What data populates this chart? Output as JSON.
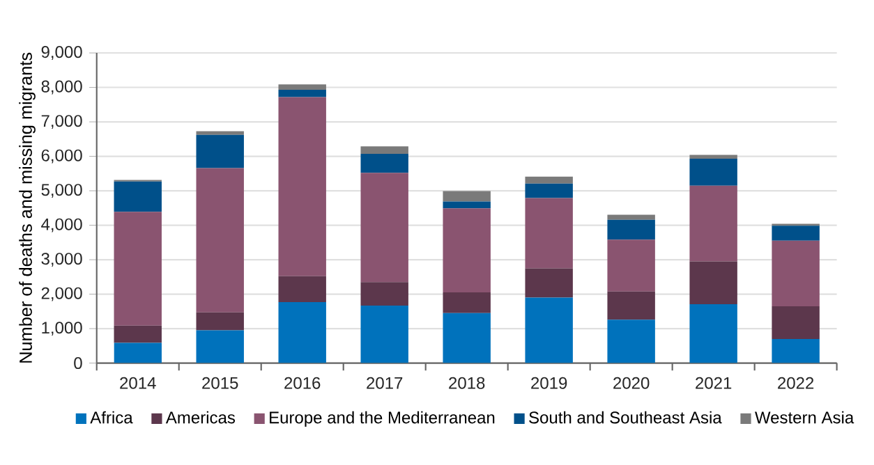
{
  "chart_data": {
    "type": "bar",
    "stacked": true,
    "ylabel": "Number of deaths and missing migrants",
    "categories": [
      "2014",
      "2015",
      "2016",
      "2017",
      "2018",
      "2019",
      "2020",
      "2021",
      "2022"
    ],
    "series": [
      {
        "name": "Africa",
        "color": "#0072bc",
        "values": [
          590,
          950,
          1770,
          1670,
          1450,
          1900,
          1260,
          1710,
          700
        ]
      },
      {
        "name": "Americas",
        "color": "#5c374c",
        "values": [
          500,
          520,
          750,
          680,
          600,
          850,
          820,
          1240,
          950
        ]
      },
      {
        "name": "Europe and the Mediterranean",
        "color": "#8a5470",
        "values": [
          3300,
          4190,
          5200,
          3170,
          2440,
          2040,
          1500,
          2200,
          1900
        ]
      },
      {
        "name": "South and Southeast Asia",
        "color": "#00508a",
        "values": [
          880,
          960,
          210,
          550,
          200,
          420,
          580,
          780,
          435
        ]
      },
      {
        "name": "Western Asia",
        "color": "#7a7a7a",
        "values": [
          45,
          110,
          155,
          220,
          300,
          200,
          145,
          110,
          55
        ]
      }
    ],
    "ylim": [
      0,
      9000
    ],
    "yticks": [
      {
        "value": 0,
        "label": "0"
      },
      {
        "value": 1000,
        "label": "1,000"
      },
      {
        "value": 2000,
        "label": "2,000"
      },
      {
        "value": 3000,
        "label": "3,000"
      },
      {
        "value": 4000,
        "label": "4,000"
      },
      {
        "value": 5000,
        "label": "5,000"
      },
      {
        "value": 6000,
        "label": "6,000"
      },
      {
        "value": 7000,
        "label": "7,000"
      },
      {
        "value": 8000,
        "label": "8,000"
      },
      {
        "value": 9000,
        "label": "9,000"
      }
    ],
    "grid": "y",
    "legend": "bottom"
  }
}
